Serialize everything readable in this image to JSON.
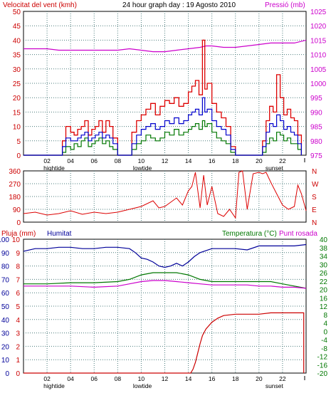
{
  "colors": {
    "wind": "#dd0000",
    "gust": "#dd0000",
    "wind_avg": "#0000cc",
    "wind_min": "#007700",
    "pressure": "#cc00cc",
    "direction": "#dd0000",
    "rain": "#cc0000",
    "humidity": "#000099",
    "temperature": "#007700",
    "dewpoint": "#cc00cc",
    "grid": "#4b7b7b",
    "axis_left": "#cc0000",
    "axis_right_pressure": "#cc00cc",
    "axis_right_temp": "#007700"
  },
  "chart_data": [
    {
      "type": "line",
      "name": "wind-pressure",
      "title": "24 hour graph day : 19 Agosto 2010",
      "ylabel": "Velocitat del vent (kmh)",
      "y2label": "Pressió (mb)",
      "ylim": [
        0,
        50
      ],
      "y2lim": [
        975,
        1025
      ],
      "yticks": [
        "0",
        "5",
        "10",
        "15",
        "20",
        "25",
        "30",
        "35",
        "40",
        "45",
        "50"
      ],
      "y2ticks": [
        "975",
        "980",
        "985",
        "990",
        "995",
        "1000",
        "1005",
        "1010",
        "1015",
        "1020",
        "1025"
      ],
      "xlim": [
        0,
        24
      ],
      "xticks": [
        "02",
        "04",
        "06",
        "08",
        "10",
        "12",
        "14",
        "16",
        "18",
        "20",
        "22"
      ],
      "markers": [
        "hightide",
        "lowtide",
        "sunset"
      ],
      "series": [
        {
          "key": "gust",
          "x": [
            0,
            3,
            3.3,
            3.6,
            4,
            4.3,
            4.6,
            4.9,
            5.2,
            5.5,
            5.8,
            6.1,
            6.4,
            6.7,
            7,
            7.3,
            7.6,
            8,
            8.3,
            8.8,
            9.2,
            9.6,
            10,
            10.4,
            10.8,
            11.2,
            11.6,
            12,
            12.4,
            12.8,
            13.2,
            13.6,
            14,
            14.3,
            14.6,
            14.9,
            15.2,
            15.4,
            15.6,
            16,
            16.4,
            16.8,
            17.2,
            17.6,
            18,
            19,
            20,
            20.3,
            20.6,
            20.9,
            21.2,
            21.5,
            21.8,
            22.1,
            22.4,
            22.7,
            23,
            23.3,
            23.6
          ],
          "values": [
            0,
            0,
            5,
            10,
            8,
            7,
            9,
            10,
            12,
            7,
            9,
            10,
            12,
            8,
            12,
            10,
            6,
            0,
            0,
            0,
            8,
            12,
            14,
            16,
            18,
            14,
            17,
            19,
            18,
            20,
            17,
            18,
            22,
            24,
            26,
            21,
            40,
            23,
            25,
            18,
            15,
            13,
            10,
            3,
            0,
            0,
            0,
            5,
            12,
            17,
            15,
            28,
            20,
            14,
            16,
            13,
            12,
            7,
            0
          ]
        },
        {
          "key": "wind_avg",
          "x": [
            0,
            3,
            3.3,
            3.6,
            4,
            4.3,
            4.6,
            4.9,
            5.2,
            5.5,
            5.8,
            6.1,
            6.4,
            6.7,
            7,
            7.3,
            7.6,
            8,
            8.3,
            8.8,
            9.2,
            9.6,
            10,
            10.4,
            10.8,
            11.2,
            11.6,
            12,
            12.4,
            12.8,
            13.2,
            13.6,
            14,
            14.3,
            14.6,
            14.9,
            15.2,
            15.4,
            15.6,
            16,
            16.4,
            16.8,
            17.2,
            17.6,
            18,
            19,
            20,
            20.3,
            20.6,
            20.9,
            21.2,
            21.5,
            21.8,
            22.1,
            22.4,
            22.7,
            23,
            23.3,
            23.6
          ],
          "values": [
            0,
            0,
            3,
            6,
            5,
            5,
            6,
            7,
            8,
            5,
            6,
            7,
            8,
            6,
            7,
            6,
            4,
            0,
            0,
            0,
            4,
            7,
            9,
            10,
            11,
            9,
            10,
            12,
            11,
            13,
            11,
            12,
            14,
            15,
            16,
            14,
            20,
            15,
            16,
            12,
            10,
            9,
            7,
            2,
            0,
            0,
            0,
            3,
            8,
            11,
            10,
            14,
            12,
            9,
            10,
            8,
            7,
            4,
            0
          ]
        },
        {
          "key": "wind_min",
          "x": [
            0,
            3,
            3.3,
            3.6,
            4,
            4.3,
            4.6,
            4.9,
            5.2,
            5.5,
            5.8,
            6.1,
            6.4,
            6.7,
            7,
            7.3,
            7.6,
            8,
            8.3,
            8.8,
            9.2,
            9.6,
            10,
            10.4,
            10.8,
            11.2,
            11.6,
            12,
            12.4,
            12.8,
            13.2,
            13.6,
            14,
            14.3,
            14.6,
            14.9,
            15.2,
            15.4,
            15.6,
            16,
            16.4,
            16.8,
            17.2,
            17.6,
            18,
            19,
            20,
            20.3,
            20.6,
            20.9,
            21.2,
            21.5,
            21.8,
            22.1,
            22.4,
            22.7,
            23,
            23.3,
            23.6
          ],
          "values": [
            0,
            0,
            1,
            3,
            2,
            4,
            3,
            5,
            6,
            3,
            4,
            5,
            6,
            4,
            5,
            3,
            2,
            0,
            0,
            0,
            2,
            4,
            5,
            7,
            6,
            5,
            6,
            8,
            7,
            9,
            7,
            8,
            9,
            10,
            11,
            9,
            12,
            10,
            11,
            8,
            6,
            5,
            4,
            1,
            0,
            0,
            0,
            1,
            4,
            6,
            5,
            8,
            7,
            5,
            6,
            4,
            4,
            2,
            0
          ]
        },
        {
          "key": "pressure",
          "x": [
            0,
            1,
            2,
            3,
            4,
            5,
            6,
            7,
            8,
            9,
            10,
            11,
            12,
            13,
            14,
            15,
            15.5,
            16,
            17,
            18,
            19,
            20,
            21,
            22,
            23,
            24
          ],
          "values": [
            1012,
            1012,
            1012,
            1011.5,
            1011.5,
            1011.5,
            1011.5,
            1011.5,
            1011.5,
            1012,
            1011.5,
            1011,
            1011,
            1011.5,
            1012,
            1012.5,
            1013,
            1013,
            1012.5,
            1012.5,
            1013,
            1013.5,
            1014,
            1014,
            1014,
            1015
          ]
        }
      ]
    },
    {
      "type": "line",
      "name": "wind-direction",
      "ylim": [
        0,
        360
      ],
      "yticks": [
        "0",
        "90",
        "180",
        "270",
        "360"
      ],
      "y2ticks": [
        "N",
        "E",
        "S",
        "W",
        "N"
      ],
      "xlim": [
        0,
        24
      ],
      "series": [
        {
          "key": "direction",
          "x": [
            0,
            1,
            2,
            3,
            4,
            5,
            6,
            7,
            8,
            9,
            10,
            11,
            11.5,
            12,
            12.5,
            13,
            13.5,
            14,
            14.3,
            14.6,
            15,
            15.3,
            15.6,
            16,
            16.5,
            17,
            17.5,
            18,
            18.3,
            18.6,
            19,
            19.5,
            20,
            20.3,
            20.6,
            21,
            21.5,
            22,
            22.5,
            23,
            23.3,
            23.6,
            24
          ],
          "values": [
            60,
            70,
            50,
            60,
            80,
            55,
            70,
            60,
            70,
            90,
            110,
            150,
            100,
            110,
            140,
            170,
            120,
            220,
            250,
            350,
            100,
            330,
            120,
            250,
            60,
            40,
            90,
            30,
            350,
            360,
            90,
            340,
            350,
            340,
            350,
            280,
            200,
            120,
            90,
            110,
            260,
            200,
            80
          ]
        }
      ]
    },
    {
      "type": "line",
      "name": "rain-humidity-temperature",
      "ylabel": "Pluja (mm)",
      "ylabel2": "Humitat",
      "y2label": "Temperatura (°C)",
      "y2label2": "Punt rosada",
      "ylim_rain": [
        0,
        10
      ],
      "ylim_hum": [
        0,
        100
      ],
      "y2lim": [
        -20,
        40
      ],
      "yticks_hum": [
        "0",
        "10",
        "20",
        "30",
        "40",
        "50",
        "60",
        "70",
        "80",
        "90",
        "100"
      ],
      "yticks_rain": [
        "0",
        "1",
        "2",
        "3",
        "4",
        "5",
        "6",
        "7",
        "8",
        "9",
        "10"
      ],
      "y2ticks": [
        "-20",
        "-16",
        "-12",
        "-8",
        "-4",
        "0",
        "4",
        "8",
        "12",
        "16",
        "20",
        "22",
        "26",
        "30",
        "34",
        "38",
        "40"
      ],
      "xlim": [
        0,
        24
      ],
      "xticks": [
        "02",
        "04",
        "06",
        "08",
        "10",
        "12",
        "14",
        "16",
        "18",
        "20",
        "22"
      ],
      "markers": [
        "hightide",
        "lowtide",
        "sunset"
      ],
      "series": [
        {
          "key": "humidity",
          "x": [
            0,
            1,
            2,
            3,
            4,
            5,
            6,
            7,
            8,
            9,
            9.5,
            10,
            10.5,
            11,
            11.5,
            12,
            12.5,
            13,
            13.5,
            14,
            14.5,
            15,
            16,
            17,
            18,
            19,
            20,
            21,
            22,
            23,
            24
          ],
          "values": [
            91,
            93,
            93,
            94,
            94,
            93,
            93,
            94,
            94,
            93,
            90,
            86,
            85,
            83,
            80,
            79,
            80,
            82,
            80,
            83,
            87,
            90,
            93,
            93,
            93,
            92,
            95,
            95,
            95,
            95,
            96
          ]
        },
        {
          "key": "temperature",
          "x": [
            0,
            2,
            4,
            6,
            8,
            9,
            10,
            11,
            12,
            13,
            14,
            15,
            16,
            17,
            18,
            19,
            20,
            21,
            22,
            23,
            24
          ],
          "values": [
            20,
            20,
            20.5,
            20.5,
            21,
            22,
            24,
            25,
            25,
            25,
            24,
            22,
            21,
            21,
            21,
            21,
            21,
            21,
            20,
            19,
            18
          ]
        },
        {
          "key": "dewpoint",
          "x": [
            0,
            2,
            4,
            6,
            8,
            9,
            10,
            11,
            12,
            13,
            14,
            15,
            16,
            17,
            18,
            19,
            20,
            21,
            22,
            23,
            24
          ],
          "values": [
            19,
            19,
            19,
            18.5,
            19,
            20,
            21,
            21.5,
            21.5,
            21,
            20.5,
            20,
            19.5,
            19.5,
            19.5,
            19.5,
            19,
            19,
            18.5,
            18.5,
            18
          ]
        },
        {
          "key": "rain",
          "x": [
            0,
            14.2,
            14.4,
            14.6,
            14.8,
            15,
            15.2,
            15.5,
            16,
            16.5,
            17,
            18,
            19,
            20,
            21,
            22,
            23,
            23.8,
            23.8
          ],
          "values": [
            0,
            0,
            0.3,
            0.8,
            1.5,
            2.2,
            2.8,
            3.3,
            3.8,
            4.1,
            4.3,
            4.4,
            4.4,
            4.4,
            4.5,
            4.5,
            4.5,
            4.5,
            0
          ]
        }
      ]
    }
  ]
}
